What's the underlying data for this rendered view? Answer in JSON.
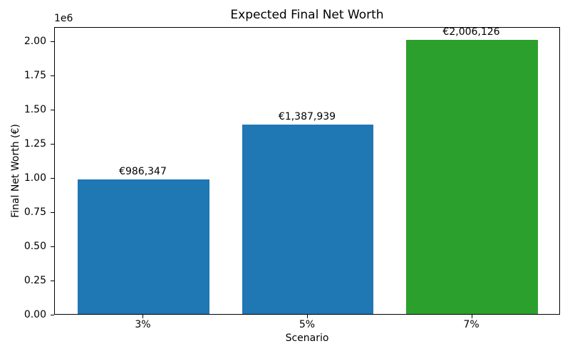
{
  "chart_data": {
    "type": "bar",
    "title": "Expected Final Net Worth",
    "xlabel": "Scenario",
    "ylabel": "Final Net Worth (€)",
    "categories": [
      "3%",
      "5%",
      "7%"
    ],
    "values": [
      986347,
      1387939,
      2006126
    ],
    "value_labels": [
      "€986,347",
      "€1,387,939",
      "€2,006,126"
    ],
    "bar_colors": [
      "#1f77b4",
      "#1f77b4",
      "#2ca02c"
    ],
    "ylim": [
      0,
      2106432
    ],
    "yticks": [
      0,
      250000,
      500000,
      750000,
      1000000,
      1250000,
      1500000,
      1750000,
      2000000
    ],
    "ytick_labels": [
      "0.00",
      "0.25",
      "0.50",
      "0.75",
      "1.00",
      "1.25",
      "1.50",
      "1.75",
      "2.00"
    ],
    "y_offset_text": "1e6",
    "grid": false,
    "legend": null,
    "bar_width_fraction": 0.8,
    "xlim": [
      -0.54,
      2.54
    ]
  }
}
